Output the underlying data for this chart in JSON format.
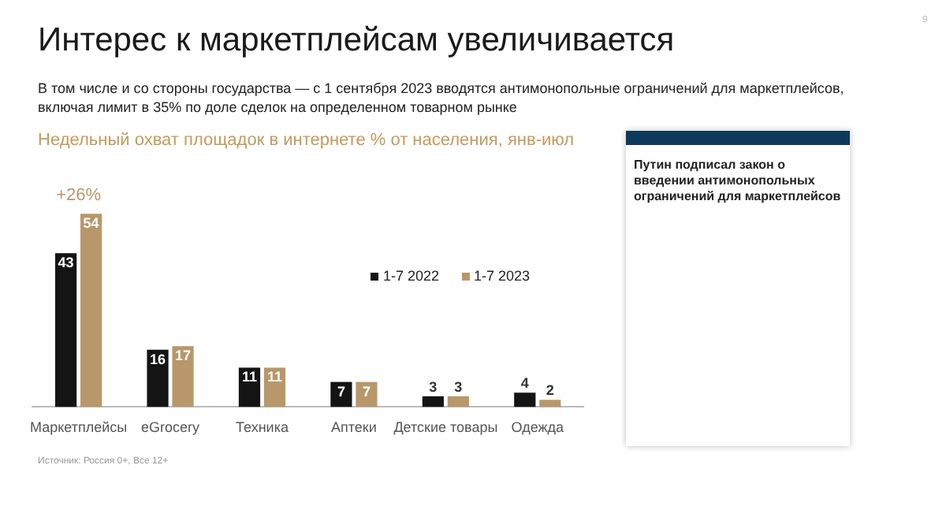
{
  "chart_data": {
    "type": "bar",
    "title": "Интерес к маркетплейсам увеличивается",
    "subtitle": "В том числе и со стороны государства — с 1 сентября 2023 вводятся антимонопольные ограничений для маркетплейсов, включая лимит в 35% по доле сделок на определенном товарном рынке",
    "xlabel": "Недельный охват площадок в интернете % от населения, янв-июл",
    "categories": [
      "Маркетплейсы",
      "eGrocery",
      "Техника",
      "Аптеки",
      "Детские товары",
      "Одежда"
    ],
    "series": [
      {
        "name": "1-7 2022",
        "color": "#141414",
        "values": [
          43,
          16,
          11,
          7,
          3,
          4
        ]
      },
      {
        "name": "1-7 2023",
        "color": "#b8976a",
        "values": [
          54,
          17,
          11,
          7,
          3,
          2
        ]
      }
    ],
    "data_labels": true,
    "legend": "right",
    "grid": false,
    "annotations": [
      {
        "text": "+26%",
        "x": "Маркетплейсы",
        "y": 54
      },
      "Путин подписал закон о введении антимонопольных ограничений для маркетплейсов",
      "Источник: Россия 0+, Все 12+",
      "9"
    ]
  }
}
